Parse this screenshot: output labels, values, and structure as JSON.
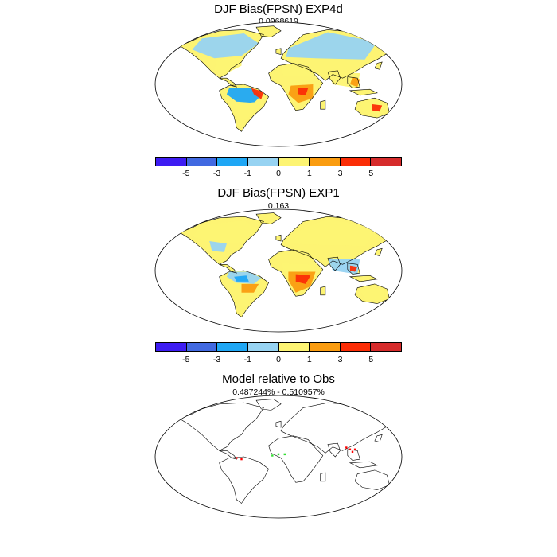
{
  "panels": [
    {
      "title": "DJF Bias(FPSN) EXP4d",
      "subtitle": "0.0968619"
    },
    {
      "title": "DJF Bias(FPSN) EXP1",
      "subtitle": "0.163"
    },
    {
      "title": "Model relative to Obs",
      "subtitle": "0.487244% - 0.510957%"
    }
  ],
  "colorbar": {
    "colors": [
      "#3d1cf2",
      "#4169e1",
      "#1fa7f5",
      "#97d3f2",
      "#fdf473",
      "#fa9c10",
      "#fb2d06",
      "#d62b2b"
    ],
    "labels": [
      "-5",
      "-3",
      "-1",
      "0",
      "1",
      "3",
      "5"
    ]
  },
  "map_style": {
    "coast_color": "#000000",
    "land_fill": "#fdf473"
  }
}
